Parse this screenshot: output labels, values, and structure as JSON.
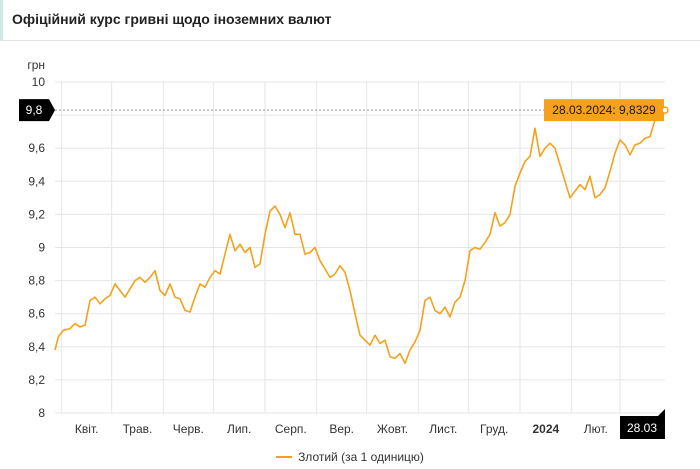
{
  "header": {
    "title": "Офіційний курс гривні щодо іноземних валют"
  },
  "colors": {
    "series": "#f5a11c",
    "grid": "#e6e6e6",
    "highlight": "#000000",
    "tooltip_bg": "#f5a11c"
  },
  "chart_data": {
    "type": "line",
    "ylabel": "грн",
    "ylim": [
      8,
      10
    ],
    "y_ticks": [
      "8",
      "8,2",
      "8,4",
      "8,6",
      "8,8",
      "9",
      "9,2",
      "9,4",
      "9,6",
      "9,8",
      "10"
    ],
    "x_labels": [
      "Квіт.",
      "Трав.",
      "Черв.",
      "Лип.",
      "Серп.",
      "Вер.",
      "Жовт.",
      "Лист.",
      "Груд.",
      "2024",
      "Лют."
    ],
    "current_x_label": "28.03",
    "current_y_label": "9,8",
    "tooltip": "28.03.2024: 9,8329",
    "x_range": [
      "2023-03-28",
      "2024-03-28"
    ],
    "grid": true,
    "legend": "bottom-center",
    "series": [
      {
        "name": "Злотий (за 1 одиницю)",
        "points": [
          [
            "2023-03-28",
            8.38
          ],
          [
            "2023-03-30",
            8.46
          ],
          [
            "2023-04-02",
            8.5
          ],
          [
            "2023-04-06",
            8.51
          ],
          [
            "2023-04-09",
            8.54
          ],
          [
            "2023-04-12",
            8.52
          ],
          [
            "2023-04-15",
            8.53
          ],
          [
            "2023-04-18",
            8.68
          ],
          [
            "2023-04-21",
            8.7
          ],
          [
            "2023-04-24",
            8.66
          ],
          [
            "2023-04-27",
            8.69
          ],
          [
            "2023-04-30",
            8.71
          ],
          [
            "2023-05-03",
            8.78
          ],
          [
            "2023-05-06",
            8.74
          ],
          [
            "2023-05-09",
            8.7
          ],
          [
            "2023-05-12",
            8.75
          ],
          [
            "2023-05-15",
            8.8
          ],
          [
            "2023-05-18",
            8.82
          ],
          [
            "2023-05-21",
            8.79
          ],
          [
            "2023-05-24",
            8.82
          ],
          [
            "2023-05-27",
            8.86
          ],
          [
            "2023-05-30",
            8.74
          ],
          [
            "2023-06-02",
            8.71
          ],
          [
            "2023-06-05",
            8.78
          ],
          [
            "2023-06-08",
            8.7
          ],
          [
            "2023-06-11",
            8.69
          ],
          [
            "2023-06-14",
            8.62
          ],
          [
            "2023-06-17",
            8.61
          ],
          [
            "2023-06-20",
            8.7
          ],
          [
            "2023-06-23",
            8.78
          ],
          [
            "2023-06-26",
            8.76
          ],
          [
            "2023-06-29",
            8.82
          ],
          [
            "2023-07-02",
            8.86
          ],
          [
            "2023-07-05",
            8.84
          ],
          [
            "2023-07-08",
            8.96
          ],
          [
            "2023-07-11",
            9.08
          ],
          [
            "2023-07-14",
            8.98
          ],
          [
            "2023-07-17",
            9.02
          ],
          [
            "2023-07-20",
            8.97
          ],
          [
            "2023-07-23",
            9.0
          ],
          [
            "2023-07-26",
            8.88
          ],
          [
            "2023-07-29",
            8.9
          ],
          [
            "2023-08-01",
            9.08
          ],
          [
            "2023-08-04",
            9.22
          ],
          [
            "2023-08-07",
            9.25
          ],
          [
            "2023-08-10",
            9.2
          ],
          [
            "2023-08-13",
            9.12
          ],
          [
            "2023-08-16",
            9.21
          ],
          [
            "2023-08-19",
            9.08
          ],
          [
            "2023-08-22",
            9.08
          ],
          [
            "2023-08-25",
            8.96
          ],
          [
            "2023-08-28",
            8.97
          ],
          [
            "2023-08-31",
            9.0
          ],
          [
            "2023-09-03",
            8.92
          ],
          [
            "2023-09-06",
            8.87
          ],
          [
            "2023-09-09",
            8.82
          ],
          [
            "2023-09-12",
            8.84
          ],
          [
            "2023-09-15",
            8.89
          ],
          [
            "2023-09-18",
            8.85
          ],
          [
            "2023-09-21",
            8.74
          ],
          [
            "2023-09-24",
            8.6
          ],
          [
            "2023-09-27",
            8.47
          ],
          [
            "2023-09-30",
            8.44
          ],
          [
            "2023-10-03",
            8.41
          ],
          [
            "2023-10-06",
            8.47
          ],
          [
            "2023-10-09",
            8.42
          ],
          [
            "2023-10-12",
            8.44
          ],
          [
            "2023-10-15",
            8.34
          ],
          [
            "2023-10-18",
            8.33
          ],
          [
            "2023-10-21",
            8.36
          ],
          [
            "2023-10-24",
            8.3
          ],
          [
            "2023-10-27",
            8.38
          ],
          [
            "2023-10-30",
            8.43
          ],
          [
            "2023-11-02",
            8.5
          ],
          [
            "2023-11-05",
            8.68
          ],
          [
            "2023-11-08",
            8.7
          ],
          [
            "2023-11-11",
            8.62
          ],
          [
            "2023-11-14",
            8.6
          ],
          [
            "2023-11-17",
            8.64
          ],
          [
            "2023-11-20",
            8.58
          ],
          [
            "2023-11-23",
            8.67
          ],
          [
            "2023-11-26",
            8.7
          ],
          [
            "2023-11-29",
            8.8
          ],
          [
            "2023-12-02",
            8.98
          ],
          [
            "2023-12-05",
            9.0
          ],
          [
            "2023-12-08",
            8.99
          ],
          [
            "2023-12-11",
            9.03
          ],
          [
            "2023-12-14",
            9.08
          ],
          [
            "2023-12-17",
            9.21
          ],
          [
            "2023-12-20",
            9.13
          ],
          [
            "2023-12-23",
            9.15
          ],
          [
            "2023-12-26",
            9.2
          ],
          [
            "2023-12-29",
            9.37
          ],
          [
            "2024-01-01",
            9.45
          ],
          [
            "2024-01-04",
            9.52
          ],
          [
            "2024-01-07",
            9.55
          ],
          [
            "2024-01-10",
            9.72
          ],
          [
            "2024-01-13",
            9.55
          ],
          [
            "2024-01-16",
            9.6
          ],
          [
            "2024-01-19",
            9.63
          ],
          [
            "2024-01-22",
            9.6
          ],
          [
            "2024-01-25",
            9.5
          ],
          [
            "2024-01-28",
            9.4
          ],
          [
            "2024-01-31",
            9.3
          ],
          [
            "2024-02-03",
            9.34
          ],
          [
            "2024-02-06",
            9.38
          ],
          [
            "2024-02-09",
            9.35
          ],
          [
            "2024-02-12",
            9.43
          ],
          [
            "2024-02-15",
            9.3
          ],
          [
            "2024-02-18",
            9.32
          ],
          [
            "2024-02-21",
            9.36
          ],
          [
            "2024-02-24",
            9.46
          ],
          [
            "2024-02-27",
            9.57
          ],
          [
            "2024-03-01",
            9.65
          ],
          [
            "2024-03-04",
            9.62
          ],
          [
            "2024-03-07",
            9.56
          ],
          [
            "2024-03-10",
            9.62
          ],
          [
            "2024-03-13",
            9.63
          ],
          [
            "2024-03-16",
            9.66
          ],
          [
            "2024-03-19",
            9.67
          ],
          [
            "2024-03-22",
            9.77
          ],
          [
            "2024-03-25",
            9.88
          ],
          [
            "2024-03-28",
            9.83
          ]
        ]
      }
    ]
  }
}
